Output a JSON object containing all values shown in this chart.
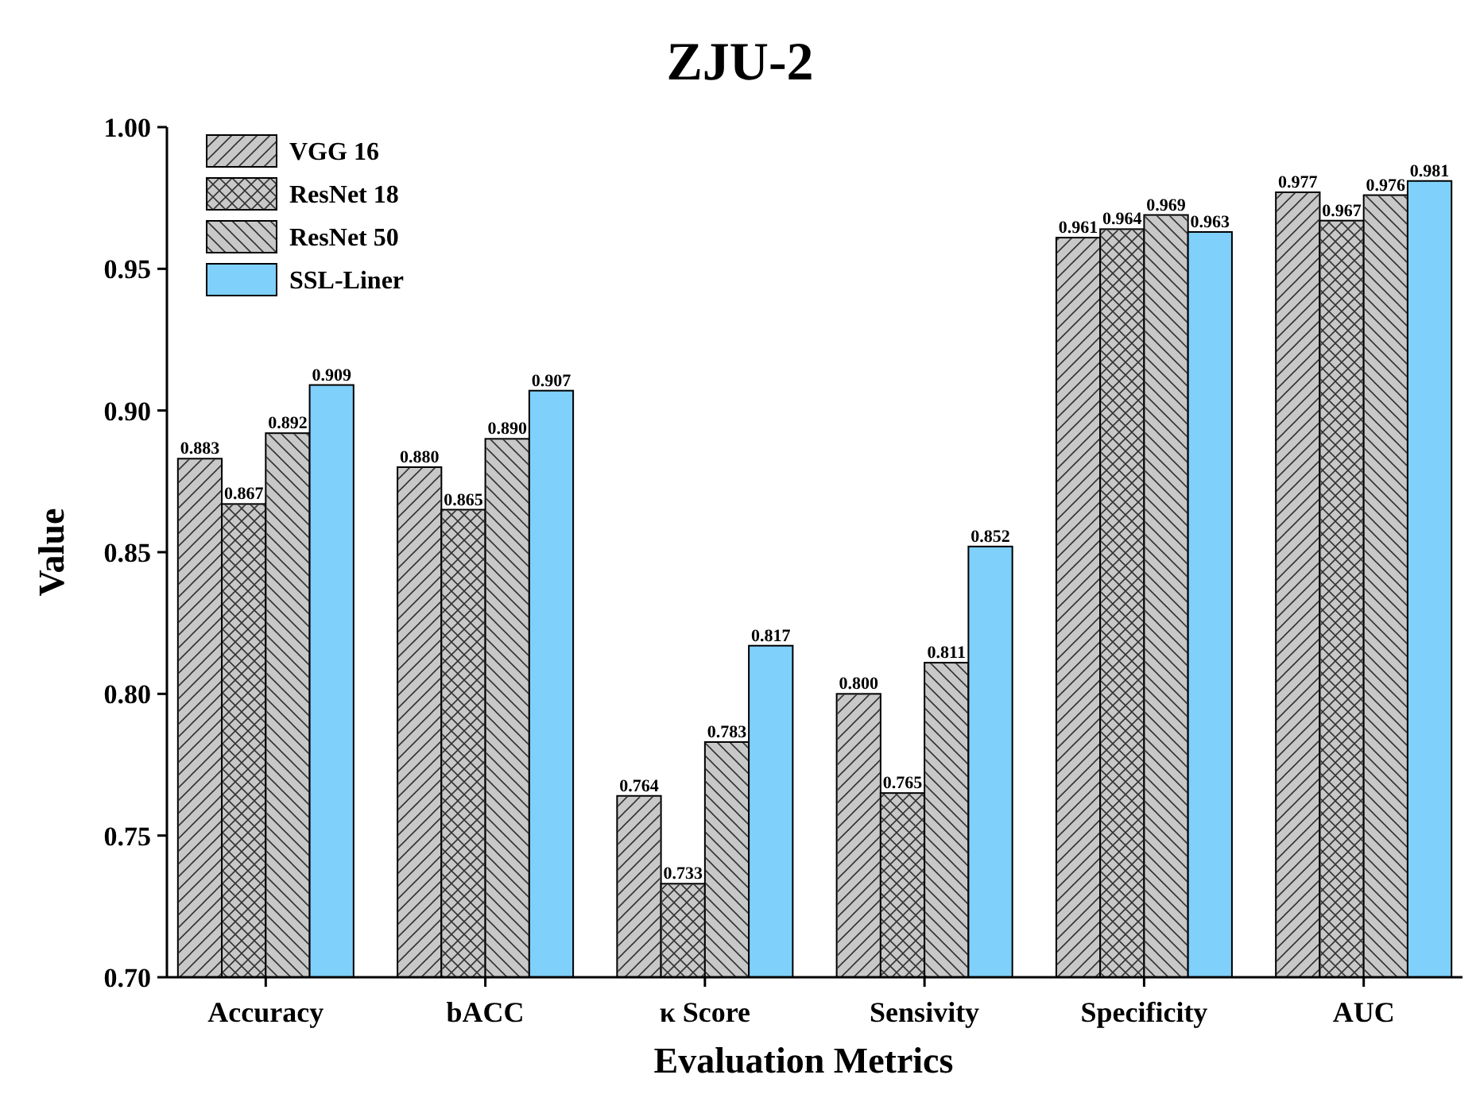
{
  "chart_data": {
    "type": "bar",
    "title": "ZJU-2",
    "xlabel": "Evaluation Metrics",
    "ylabel": "Value",
    "categories": [
      "Accuracy",
      "bACC",
      "κ Score",
      "Sensivity",
      "Specificity",
      "AUC"
    ],
    "series": [
      {
        "name": "VGG 16",
        "color": "#c8c8c8",
        "values": [
          0.883,
          0.88,
          0.764,
          0.8,
          0.961,
          0.977
        ],
        "value_labels": [
          "0.883",
          "0.880",
          "0.764",
          "0.800",
          "0.961",
          "0.977"
        ]
      },
      {
        "name": "ResNet 18",
        "color": "#c8c8c8",
        "values": [
          0.867,
          0.865,
          0.733,
          0.765,
          0.964,
          0.967
        ],
        "value_labels": [
          "0.867",
          "0.865",
          "0.733",
          "0.765",
          "0.964",
          "0.967"
        ]
      },
      {
        "name": "ResNet 50",
        "color": "#c8c8c8",
        "values": [
          0.892,
          0.89,
          0.783,
          0.811,
          0.969,
          0.976
        ],
        "value_labels": [
          "0.892",
          "0.890",
          "0.783",
          "0.811",
          "0.969",
          "0.976"
        ]
      },
      {
        "name": "SSL-Liner",
        "color": "#7fd0fb",
        "values": [
          0.909,
          0.907,
          0.817,
          0.852,
          0.963,
          0.981
        ],
        "value_labels": [
          "0.909",
          "0.907",
          "0.817",
          "0.852",
          "0.963",
          "0.981"
        ]
      }
    ],
    "ylim": [
      0.7,
      1.0
    ],
    "yticks": [
      "0.70",
      "0.75",
      "0.80",
      "0.85",
      "0.90",
      "0.95",
      "1.00"
    ],
    "legend": "top left",
    "grid": false
  }
}
